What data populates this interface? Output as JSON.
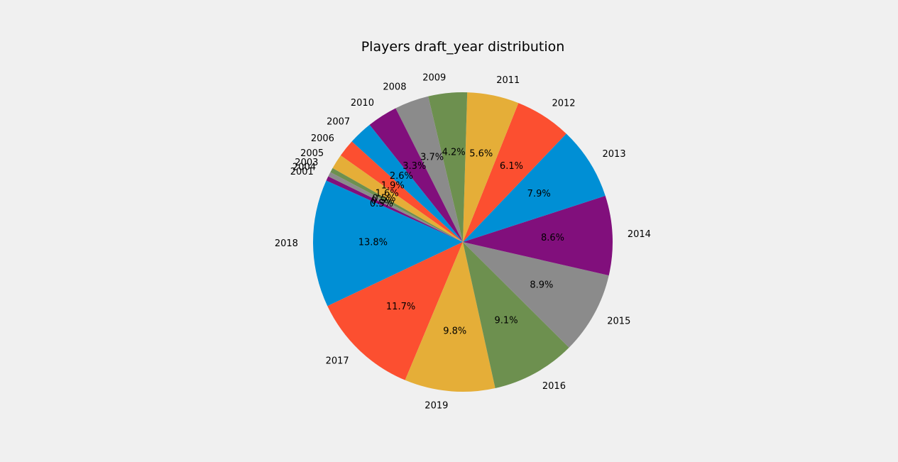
{
  "chart_data": {
    "type": "pie",
    "title": "Players draft_year distribution",
    "start_angle_deg": 154,
    "direction": "counterclockwise",
    "autopct_format": "{v}%",
    "background": "#f0f0f0",
    "slices": [
      {
        "label": "2001",
        "value": 0.5,
        "color": "#810f7c"
      },
      {
        "label": "2018",
        "value": 13.8,
        "color": "#008fd5"
      },
      {
        "label": "2017",
        "value": 11.7,
        "color": "#fc4f30"
      },
      {
        "label": "2019",
        "value": 9.8,
        "color": "#e5ae38"
      },
      {
        "label": "2016",
        "value": 9.1,
        "color": "#6d904f"
      },
      {
        "label": "2015",
        "value": 8.9,
        "color": "#8b8b8b"
      },
      {
        "label": "2014",
        "value": 8.6,
        "color": "#810f7c"
      },
      {
        "label": "2013",
        "value": 7.9,
        "color": "#008fd5"
      },
      {
        "label": "2012",
        "value": 6.1,
        "color": "#fc4f30"
      },
      {
        "label": "2011",
        "value": 5.6,
        "color": "#e5ae38"
      },
      {
        "label": "2009",
        "value": 4.2,
        "color": "#6d904f"
      },
      {
        "label": "2008",
        "value": 3.7,
        "color": "#8b8b8b"
      },
      {
        "label": "2010",
        "value": 3.3,
        "color": "#810f7c"
      },
      {
        "label": "2007",
        "value": 2.6,
        "color": "#008fd5"
      },
      {
        "label": "2006",
        "value": 1.9,
        "color": "#fc4f30"
      },
      {
        "label": "2005",
        "value": 1.6,
        "color": "#e5ae38"
      },
      {
        "label": "2003",
        "value": 0.5,
        "color": "#6d904f"
      },
      {
        "label": "2004",
        "value": 0.5,
        "color": "#8b8b8b"
      }
    ]
  }
}
